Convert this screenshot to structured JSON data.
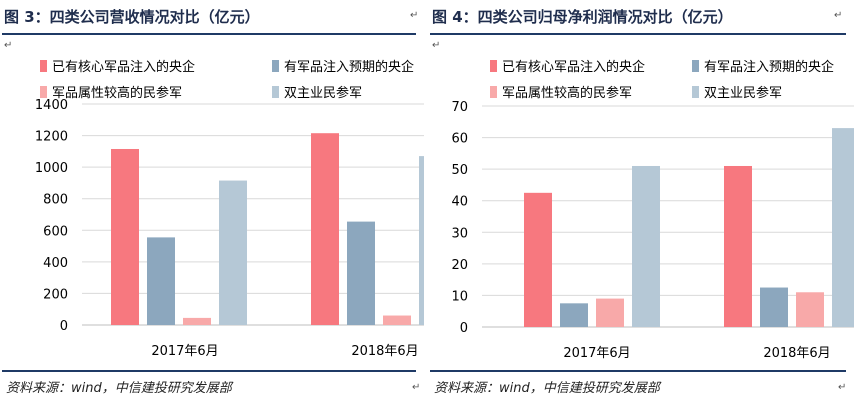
{
  "chart_data": [
    {
      "type": "bar",
      "title": "图 3：四类公司营收情况对比（亿元）",
      "categories": [
        "2017年6月",
        "2018年6月"
      ],
      "series": [
        {
          "name": "已有核心军品注入的央企",
          "color": "#f7787f",
          "values": [
            1115,
            1215
          ]
        },
        {
          "name": "有军品注入预期的央企",
          "color": "#8ca7be",
          "values": [
            555,
            655
          ]
        },
        {
          "name": "军品属性较高的民参军",
          "color": "#f8a9a9",
          "values": [
            45,
            60
          ]
        },
        {
          "name": "双主业民参军",
          "color": "#b5c8d6",
          "values": [
            915,
            1070
          ]
        }
      ],
      "yticks": [
        0,
        200,
        400,
        600,
        800,
        1000,
        1200,
        1400
      ],
      "ylim": [
        0,
        1400
      ],
      "xlabel": "",
      "ylabel": "",
      "grid": true,
      "source": "资料来源：wind，中信建投研究发展部"
    },
    {
      "type": "bar",
      "title": "图 4：四类公司归母净利润情况对比（亿元）",
      "categories": [
        "2017年6月",
        "2018年6月"
      ],
      "series": [
        {
          "name": "已有核心军品注入的央企",
          "color": "#f7787f",
          "values": [
            42.5,
            51
          ]
        },
        {
          "name": "有军品注入预期的央企",
          "color": "#8ca7be",
          "values": [
            7.5,
            12.5
          ]
        },
        {
          "name": "军品属性较高的民参军",
          "color": "#f8a9a9",
          "values": [
            9,
            11
          ]
        },
        {
          "name": "双主业民参军",
          "color": "#b5c8d6",
          "values": [
            51,
            63
          ]
        }
      ],
      "yticks": [
        0,
        10,
        20,
        30,
        40,
        50,
        60,
        70
      ],
      "ylim": [
        0,
        70
      ],
      "xlabel": "",
      "ylabel": "",
      "grid": true,
      "source": "资料来源：wind，中信建投研究发展部"
    }
  ]
}
